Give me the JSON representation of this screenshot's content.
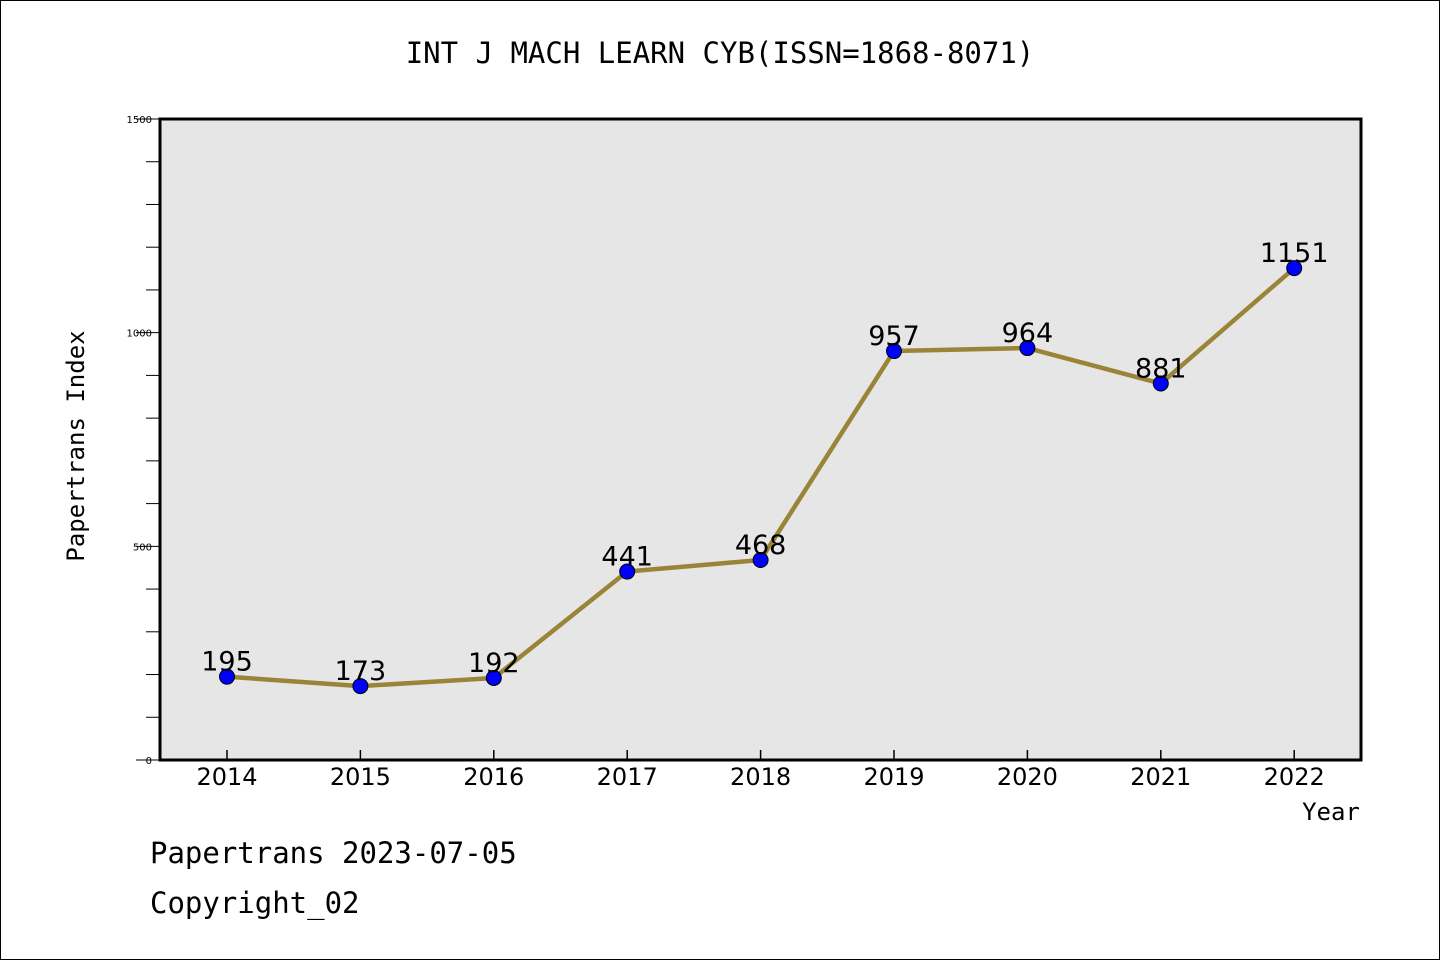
{
  "chart_data": {
    "type": "line",
    "title": "INT J MACH LEARN CYB(ISSN=1868-8071)",
    "xlabel": "Year",
    "ylabel": "Papertrans Index",
    "categories": [
      "2014",
      "2015",
      "2016",
      "2017",
      "2018",
      "2019",
      "2020",
      "2021",
      "2022"
    ],
    "series": [
      {
        "values": [
          195,
          173,
          192,
          441,
          468,
          957,
          964,
          881,
          1151
        ],
        "data_labels": [
          "195",
          "173",
          "192",
          "441",
          "468",
          "957",
          "964",
          "881",
          "1151"
        ]
      }
    ],
    "ylim": [
      0,
      1500
    ],
    "yticks": [
      0,
      500,
      1000,
      1500
    ],
    "ytick_labels": [
      "0",
      "500",
      "1000",
      "1500"
    ],
    "grid": false,
    "colors": {
      "line": "#9a8438",
      "marker": "#0000ff",
      "plot_background": "#e6e6e6"
    }
  },
  "footer": {
    "line1": "Papertrans 2023-07-05",
    "line2": "Copyright_02"
  }
}
